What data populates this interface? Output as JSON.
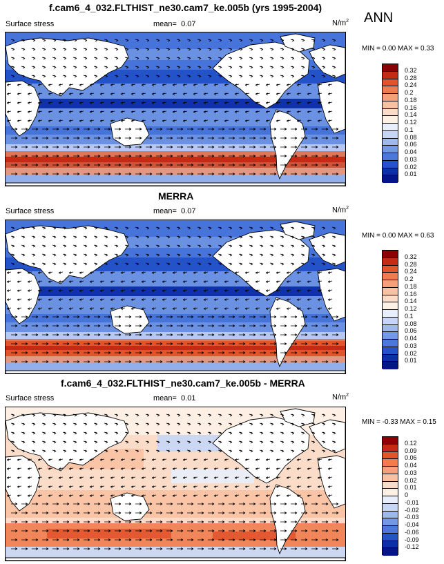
{
  "figure": {
    "season": "ANN"
  },
  "panels": [
    {
      "title": "f.cam6_4_032.FLTHIST_ne30.cam7_ke.005b (yrs 1995-2004)",
      "variable": "Surface stress",
      "mean_label": "mean=",
      "mean_value": "0.07",
      "units": "N/m",
      "units_sup": "2",
      "min_max": "MIN =  0.00 MAX =  0.33",
      "kind": "abs"
    },
    {
      "title": "MERRA",
      "variable": "Surface stress",
      "mean_label": "mean=",
      "mean_value": "0.07",
      "units": "N/m",
      "units_sup": "2",
      "min_max": "MIN =  0.00 MAX =  0.63",
      "kind": "abs"
    },
    {
      "title": "f.cam6_4_032.FLTHIST_ne30.cam7_ke.005b - MERRA",
      "variable": "Surface stress",
      "mean_label": "mean=",
      "mean_value": "0.01",
      "units": "N/m",
      "units_sup": "2",
      "min_max": "MIN = -0.33 MAX =  0.15",
      "kind": "diff"
    }
  ],
  "chart_data": [
    {
      "type": "heatmap",
      "title": "f.cam6_4_032.FLTHIST_ne30.cam7_ke.005b (yrs 1995-2004)",
      "colorbar_levels": [
        "0.32",
        "0.28",
        "0.24",
        "0.2",
        "0.18",
        "0.16",
        "0.14",
        "0.12",
        "0.1",
        "0.08",
        "0.06",
        "0.04",
        "0.03",
        "0.02",
        "0.01"
      ],
      "colorbar_colors": [
        "#8b0000",
        "#c42a14",
        "#e2542c",
        "#f07c4e",
        "#f6a07a",
        "#f9c1a2",
        "#fbdcc8",
        "#fdf1e6",
        "#e8eefb",
        "#c7d6f6",
        "#9fb8ee",
        "#7398e5",
        "#4a78db",
        "#2352c9",
        "#0d2fa8",
        "#04158a"
      ],
      "mean": 0.07,
      "min": 0.0,
      "max": 0.33
    },
    {
      "type": "heatmap",
      "title": "MERRA",
      "colorbar_levels": [
        "0.32",
        "0.28",
        "0.24",
        "0.2",
        "0.18",
        "0.16",
        "0.14",
        "0.12",
        "0.1",
        "0.08",
        "0.06",
        "0.04",
        "0.03",
        "0.02",
        "0.01"
      ],
      "colorbar_colors": [
        "#8b0000",
        "#c42a14",
        "#e2542c",
        "#f07c4e",
        "#f6a07a",
        "#f9c1a2",
        "#fbdcc8",
        "#fdf1e6",
        "#e8eefb",
        "#c7d6f6",
        "#9fb8ee",
        "#7398e5",
        "#4a78db",
        "#2352c9",
        "#0d2fa8",
        "#04158a"
      ],
      "mean": 0.07,
      "min": 0.0,
      "max": 0.63
    },
    {
      "type": "heatmap",
      "title": "f.cam6_4_032.FLTHIST_ne30.cam7_ke.005b - MERRA",
      "colorbar_levels": [
        "0.12",
        "0.09",
        "0.06",
        "0.04",
        "0.03",
        "0.02",
        "0.01",
        "0",
        "-0.01",
        "-0.02",
        "-0.03",
        "-0.04",
        "-0.06",
        "-0.09",
        "-0.12"
      ],
      "colorbar_colors": [
        "#8b0000",
        "#c42a14",
        "#e2542c",
        "#f07c4e",
        "#f6a07a",
        "#f9c1a2",
        "#fbdcc8",
        "#fdf1e6",
        "#e8eefb",
        "#c7d6f6",
        "#9fb8ee",
        "#7398e5",
        "#4a78db",
        "#2352c9",
        "#0d2fa8",
        "#04158a"
      ],
      "mean": 0.01,
      "min": -0.33,
      "max": 0.15
    }
  ]
}
